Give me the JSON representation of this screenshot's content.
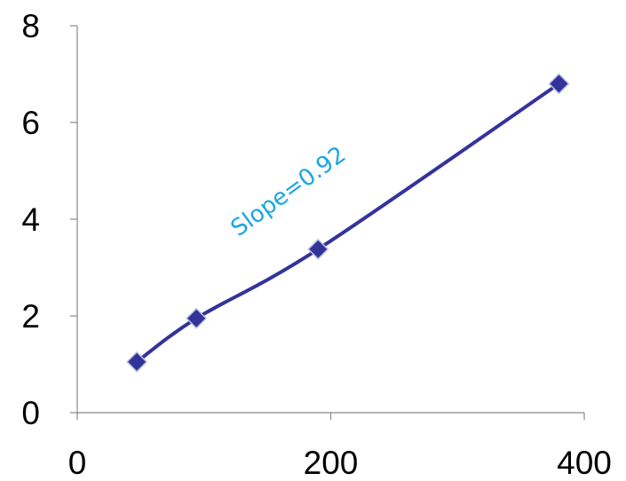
{
  "chart_data": {
    "type": "line",
    "title": "",
    "xlabel": "",
    "ylabel": "",
    "xlim": [
      0,
      400
    ],
    "ylim": [
      0,
      8
    ],
    "x_ticks": [
      0,
      200,
      400
    ],
    "y_ticks": [
      0,
      2,
      4,
      6,
      8
    ],
    "grid": false,
    "legend": "none",
    "series": [
      {
        "x": [
          47,
          94,
          190,
          380
        ],
        "y": [
          1.05,
          1.95,
          3.38,
          6.8
        ],
        "color": "#33339a",
        "marker": "diamond"
      }
    ],
    "annotations": [
      {
        "text": "Slope=0.92",
        "x": 170,
        "y": 4.45,
        "rotation_deg": -36,
        "color": "#1aa6e0"
      }
    ]
  }
}
